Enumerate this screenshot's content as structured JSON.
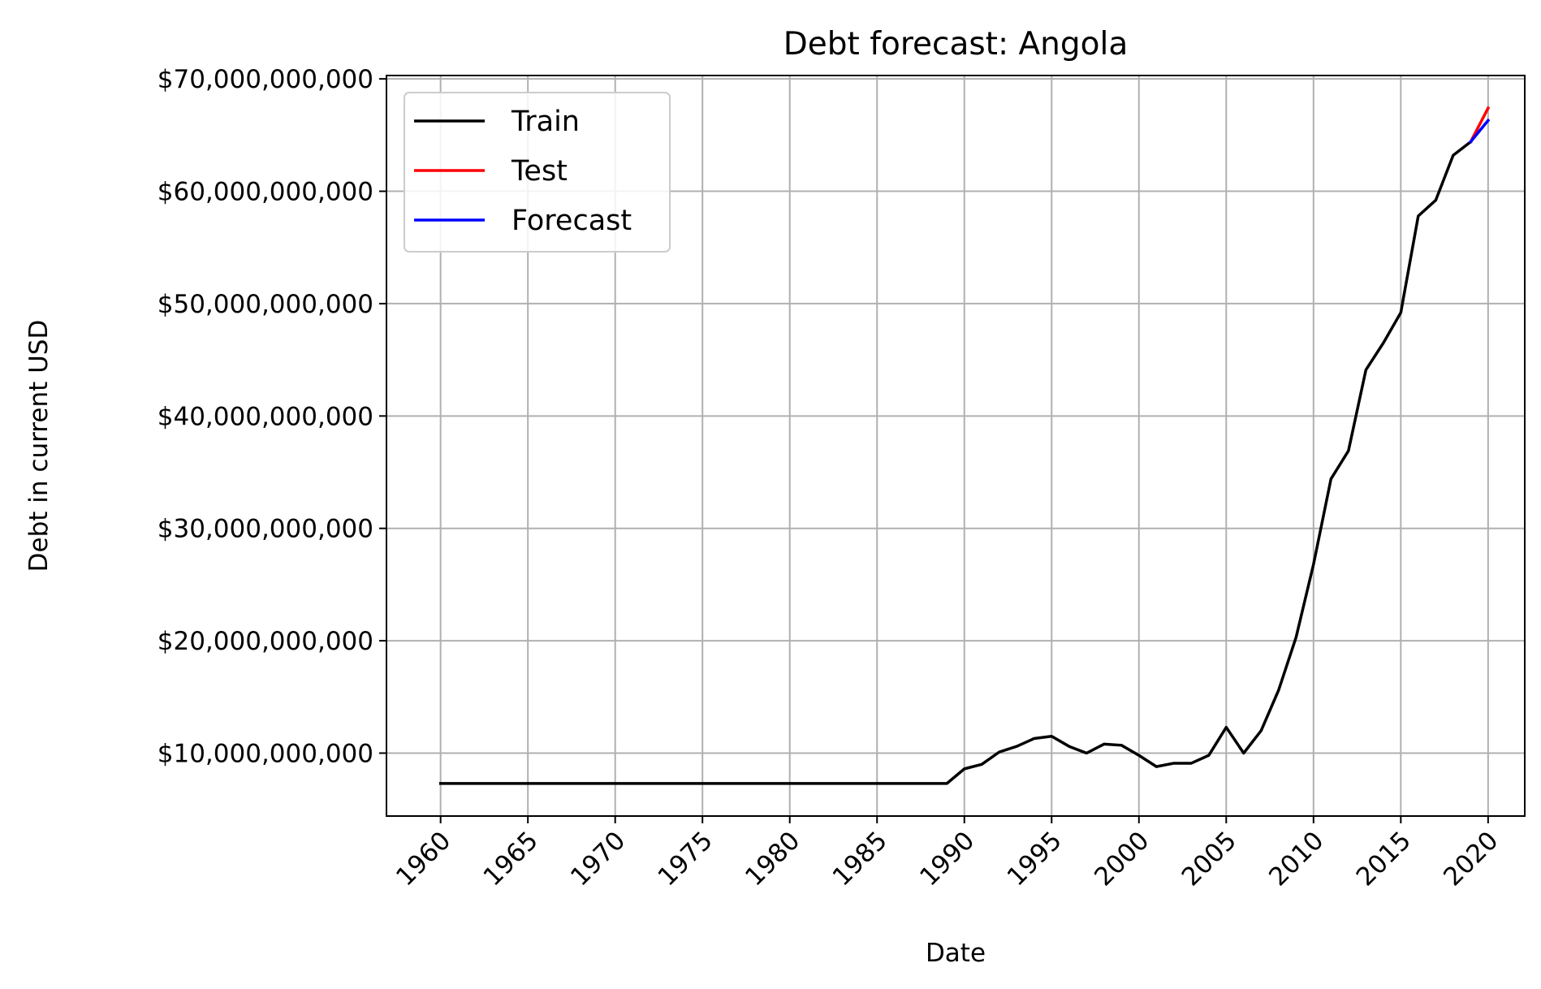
{
  "chart_data": {
    "type": "line",
    "title": "Debt forecast: Angola",
    "xlabel": "Date",
    "ylabel": "Debt in current USD",
    "xlim": [
      1956.9,
      2022.1
    ],
    "ylim": [
      4400000000,
      70300000000
    ],
    "x_ticks": [
      1960,
      1965,
      1970,
      1975,
      1980,
      1985,
      1990,
      1995,
      2000,
      2005,
      2010,
      2015,
      2020
    ],
    "x_tick_labels": [
      "1960",
      "1965",
      "1970",
      "1975",
      "1980",
      "1985",
      "1990",
      "1995",
      "2000",
      "2005",
      "2010",
      "2015",
      "2020"
    ],
    "y_ticks": [
      10000000000,
      20000000000,
      30000000000,
      40000000000,
      50000000000,
      60000000000,
      70000000000
    ],
    "y_tick_labels": [
      "$10,000,000,000",
      "$20,000,000,000",
      "$30,000,000,000",
      "$40,000,000,000",
      "$50,000,000,000",
      "$60,000,000,000",
      "$70,000,000,000"
    ],
    "grid": true,
    "legend_position": "top-left",
    "series": [
      {
        "name": "Train",
        "color": "#000000",
        "x": [
          1960,
          1961,
          1962,
          1963,
          1964,
          1965,
          1966,
          1967,
          1968,
          1969,
          1970,
          1971,
          1972,
          1973,
          1974,
          1975,
          1976,
          1977,
          1978,
          1979,
          1980,
          1981,
          1982,
          1983,
          1984,
          1985,
          1986,
          1987,
          1988,
          1989,
          1990,
          1991,
          1992,
          1993,
          1994,
          1995,
          1996,
          1997,
          1998,
          1999,
          2000,
          2001,
          2002,
          2003,
          2004,
          2005,
          2006,
          2007,
          2008,
          2009,
          2010,
          2011,
          2012,
          2013,
          2014,
          2015,
          2016,
          2017,
          2018,
          2019
        ],
        "y": [
          7300000000,
          7300000000,
          7300000000,
          7300000000,
          7300000000,
          7300000000,
          7300000000,
          7300000000,
          7300000000,
          7300000000,
          7300000000,
          7300000000,
          7300000000,
          7300000000,
          7300000000,
          7300000000,
          7300000000,
          7300000000,
          7300000000,
          7300000000,
          7300000000,
          7300000000,
          7300000000,
          7300000000,
          7300000000,
          7300000000,
          7300000000,
          7300000000,
          7300000000,
          7300000000,
          8600000000,
          9000000000,
          10100000000,
          10600000000,
          11300000000,
          11500000000,
          10600000000,
          10000000000,
          10800000000,
          10700000000,
          9800000000,
          8800000000,
          9100000000,
          9100000000,
          9800000000,
          12300000000,
          10000000000,
          12000000000,
          15600000000,
          20300000000,
          26800000000,
          34400000000,
          36900000000,
          44100000000,
          46500000000,
          49200000000,
          57800000000,
          59200000000,
          63200000000,
          64400000000
        ]
      },
      {
        "name": "Test",
        "color": "#ff0000",
        "x": [
          2019,
          2020
        ],
        "y": [
          64400000000,
          67400000000
        ]
      },
      {
        "name": "Forecast",
        "color": "#0000ff",
        "x": [
          2019,
          2020
        ],
        "y": [
          64400000000,
          66300000000
        ]
      }
    ]
  }
}
